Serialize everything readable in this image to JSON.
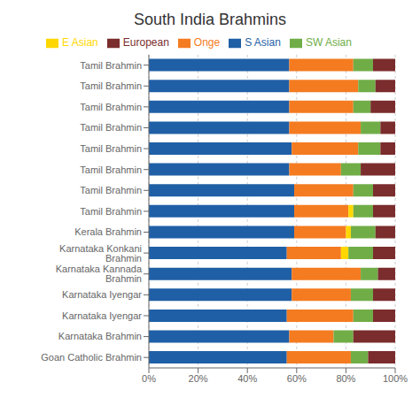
{
  "chart_data": {
    "type": "bar",
    "title": "South India Brahmins",
    "orientation": "horizontal",
    "stacked": true,
    "grid": true,
    "legend": "top",
    "categories": [
      "Tamil Brahmin",
      "Tamil Brahmin",
      "Tamil Brahmin",
      "Tamil Brahmin",
      "Tamil Brahmin",
      "Tamil Brahmin",
      "Tamil Brahmin",
      "Tamil Brahmin",
      "Kerala Brahmin",
      "Karnataka Konkani Brahmin",
      "Karnataka Kannada Brahmin",
      "Karnataka Iyengar",
      "Karnataka Iyengar",
      "Karnataka Brahmin",
      "Goan Catholic Brahmin"
    ],
    "series": [
      {
        "name": "S Asian",
        "color": "#1f5fa6",
        "values": [
          57,
          57,
          57,
          57,
          58,
          57,
          59,
          59,
          59,
          56,
          58,
          58,
          56,
          57,
          56
        ]
      },
      {
        "name": "Onge",
        "color": "#f47b20",
        "values": [
          26,
          28,
          26,
          29,
          27,
          21,
          24,
          22,
          21,
          22,
          28,
          24,
          27,
          18,
          26
        ]
      },
      {
        "name": "E Asian",
        "color": "#ffd700",
        "values": [
          0,
          0,
          0,
          0,
          0,
          0,
          0,
          2,
          2,
          3,
          0,
          0,
          0,
          0,
          0
        ]
      },
      {
        "name": "SW Asian",
        "color": "#70ad47",
        "values": [
          8,
          7,
          7,
          8,
          9,
          8,
          8,
          8,
          10,
          10,
          7,
          9,
          8,
          8,
          7
        ]
      },
      {
        "name": "European",
        "color": "#7b2c2c",
        "values": [
          9,
          8,
          10,
          6,
          6,
          14,
          9,
          9,
          8,
          9,
          7,
          9,
          9,
          17,
          11
        ]
      }
    ],
    "xlim": [
      0,
      100
    ],
    "xticks": [
      {
        "value": 0,
        "label": "0%"
      },
      {
        "value": 20,
        "label": "20%"
      },
      {
        "value": 40,
        "label": "40%"
      },
      {
        "value": 60,
        "label": "60%"
      },
      {
        "value": 80,
        "label": "80%"
      },
      {
        "value": 100,
        "label": "100%"
      }
    ]
  }
}
